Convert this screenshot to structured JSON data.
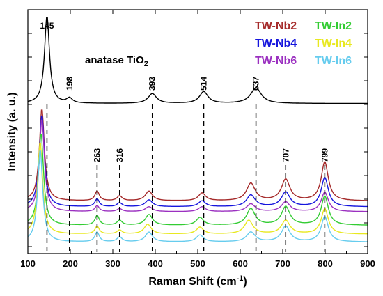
{
  "chart_data": {
    "type": "line",
    "xlabel_main": "Raman Shift (cm",
    "xlabel_sup": "-1",
    "xlabel_end": ")",
    "ylabel": "Intensity (a. u.)",
    "xlim": [
      100,
      900
    ],
    "x_ticks": [
      "100",
      "200",
      "300",
      "400",
      "500",
      "600",
      "700",
      "800",
      "900"
    ],
    "annotation_main": "anatase TiO",
    "annotation_sub": "2",
    "reference_peaks": [
      "145",
      "198",
      "393",
      "514",
      "637"
    ],
    "sample_peaks": [
      "263",
      "316",
      "707",
      "799"
    ],
    "reference_peak_positions": [
      145,
      198,
      393,
      514,
      637
    ],
    "sample_peak_positions": [
      263,
      316,
      707,
      799
    ],
    "series": [
      {
        "name": "anatase TiO2",
        "color": "#000000",
        "offset": 1.0,
        "peaks": [
          [
            145,
            0.9,
            7
          ],
          [
            198,
            0.05,
            8
          ],
          [
            393,
            0.1,
            12
          ],
          [
            514,
            0.12,
            12
          ],
          [
            637,
            0.16,
            15
          ]
        ]
      },
      {
        "name": "TW-Nb2",
        "color": "#a52a2a",
        "offset": 0.0,
        "peaks": [
          [
            133,
            0.95,
            7
          ],
          [
            263,
            0.1,
            6
          ],
          [
            316,
            0.05,
            7
          ],
          [
            385,
            0.1,
            10
          ],
          [
            510,
            0.08,
            10
          ],
          [
            625,
            0.18,
            12
          ],
          [
            707,
            0.22,
            12
          ],
          [
            799,
            0.4,
            10
          ]
        ]
      },
      {
        "name": "TW-Nb4",
        "color": "#1515dd",
        "offset": -0.06,
        "peaks": [
          [
            133,
            0.95,
            7
          ],
          [
            263,
            0.08,
            6
          ],
          [
            316,
            0.04,
            7
          ],
          [
            385,
            0.07,
            10
          ],
          [
            510,
            0.06,
            10
          ],
          [
            625,
            0.12,
            12
          ],
          [
            707,
            0.15,
            12
          ],
          [
            799,
            0.3,
            10
          ]
        ]
      },
      {
        "name": "TW-Nb6",
        "color": "#9b30c0",
        "offset": -0.11,
        "peaks": [
          [
            133,
            0.95,
            7
          ],
          [
            263,
            0.06,
            6
          ],
          [
            316,
            0.03,
            7
          ],
          [
            385,
            0.05,
            10
          ],
          [
            510,
            0.05,
            10
          ],
          [
            625,
            0.08,
            12
          ],
          [
            707,
            0.1,
            12
          ],
          [
            799,
            0.2,
            10
          ]
        ]
      },
      {
        "name": "TW-In2",
        "color": "#33cc33",
        "offset": -0.25,
        "peaks": [
          [
            131,
            0.95,
            7
          ],
          [
            263,
            0.1,
            6
          ],
          [
            316,
            0.05,
            7
          ],
          [
            385,
            0.11,
            10
          ],
          [
            505,
            0.08,
            10
          ],
          [
            625,
            0.17,
            12
          ],
          [
            707,
            0.19,
            12
          ],
          [
            799,
            0.3,
            10
          ]
        ]
      },
      {
        "name": "TW-In4",
        "color": "#e8e820",
        "offset": -0.34,
        "peaks": [
          [
            129,
            0.95,
            7
          ],
          [
            263,
            0.08,
            6
          ],
          [
            316,
            0.04,
            7
          ],
          [
            382,
            0.1,
            10
          ],
          [
            505,
            0.07,
            10
          ],
          [
            620,
            0.14,
            12
          ],
          [
            707,
            0.14,
            12
          ],
          [
            799,
            0.26,
            10
          ]
        ]
      },
      {
        "name": "TW-In6",
        "color": "#66ccee",
        "offset": -0.42,
        "peaks": [
          [
            129,
            0.95,
            7
          ],
          [
            263,
            0.1,
            6
          ],
          [
            316,
            0.05,
            7
          ],
          [
            385,
            0.1,
            10
          ],
          [
            505,
            0.07,
            10
          ],
          [
            625,
            0.1,
            12
          ],
          [
            707,
            0.16,
            12
          ],
          [
            799,
            0.26,
            10
          ]
        ]
      }
    ]
  },
  "legend": {
    "col1": [
      {
        "label": "TW-Nb2",
        "color": "#a52a2a"
      },
      {
        "label": "TW-Nb4",
        "color": "#1515dd"
      },
      {
        "label": "TW-Nb6",
        "color": "#9b30c0"
      }
    ],
    "col2": [
      {
        "label": "TW-In2",
        "color": "#33cc33"
      },
      {
        "label": "TW-In4",
        "color": "#e8e820"
      },
      {
        "label": "TW-In6",
        "color": "#66ccee"
      }
    ]
  }
}
